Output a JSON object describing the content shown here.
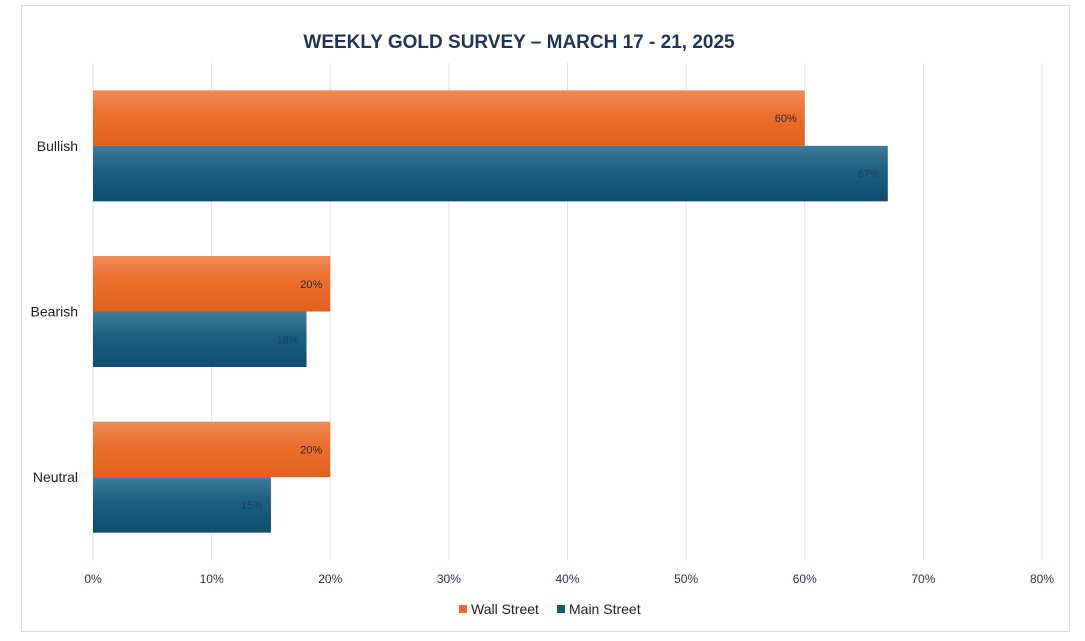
{
  "chart_data": {
    "type": "bar",
    "orientation": "horizontal",
    "title": "WEEKLY GOLD SURVEY – MARCH 17 - 21, 2025",
    "categories": [
      "Bullish",
      "Bearish",
      "Neutral"
    ],
    "series": [
      {
        "name": "Wall Street",
        "values": [
          60,
          20,
          20
        ],
        "color": "#e8692a",
        "labels": [
          "60%",
          "20%",
          "20%"
        ]
      },
      {
        "name": "Main Street",
        "values": [
          67,
          18,
          15
        ],
        "color": "#16587a",
        "labels": [
          "67%",
          "18%",
          "15%"
        ]
      }
    ],
    "xlim": [
      0,
      80
    ],
    "xticks": [
      0,
      10,
      20,
      30,
      40,
      50,
      60,
      70,
      80
    ],
    "xtick_labels": [
      "0%",
      "10%",
      "20%",
      "30%",
      "40%",
      "50%",
      "60%",
      "70%",
      "80%"
    ],
    "grid": true,
    "legend_position": "bottom"
  }
}
